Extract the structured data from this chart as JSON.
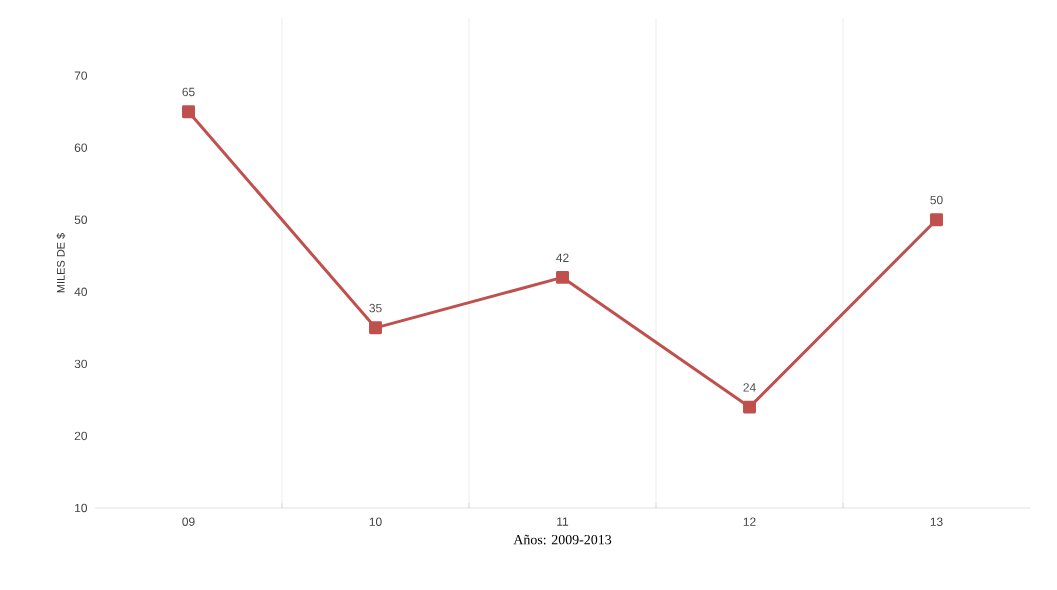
{
  "chart_data": {
    "type": "line",
    "xlabel": "Años: 2009-2013",
    "ylabel": "MILES DE $",
    "categories": [
      "09",
      "10",
      "11",
      "12",
      "13"
    ],
    "series": [
      {
        "color": "#c0504d",
        "values": [
          65,
          35,
          42,
          24,
          50
        ]
      }
    ],
    "ylim": [
      10,
      78
    ],
    "yticks": [
      10,
      20,
      30,
      40,
      50,
      60,
      70
    ],
    "grid": "x",
    "marker": "square",
    "line_style": "solid",
    "data_labels": true,
    "legend": false
  }
}
